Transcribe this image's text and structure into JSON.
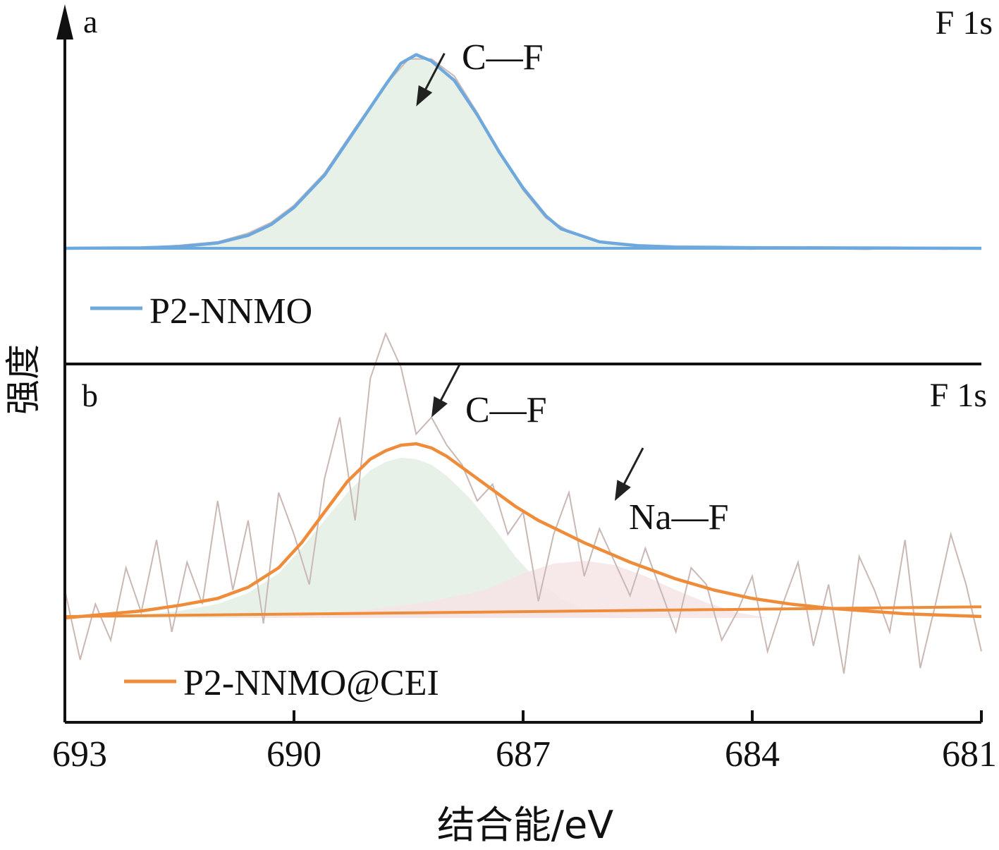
{
  "chart_data": {
    "type": "line",
    "xlabel": "结合能/eV",
    "ylabel": "强度",
    "x_ticks": [
      693,
      690,
      687,
      684,
      681
    ],
    "xlim": [
      693,
      681
    ],
    "colors": {
      "a": "#6fa8dc",
      "b": "#ef8c3a",
      "raw": "#c9b8b4",
      "fill_cf": "#e4efe4",
      "fill_naf": "#f6e4e6",
      "axis": "#111111"
    },
    "panels": [
      {
        "panel_label": "a",
        "core_level": "F 1s",
        "legend": "P2-NNMO",
        "ylim": [
          0,
          1.2
        ],
        "annotations": [
          {
            "text": "C—F",
            "x": 688.4,
            "y": 0.66
          }
        ],
        "series": [
          {
            "name": "P2-NNMO",
            "role": "fit_envelope",
            "x": [
              693,
              692,
              691.5,
              691,
              690.6,
              690.3,
              690,
              689.6,
              689.2,
              688.8,
              688.6,
              688.4,
              688.2,
              687.9,
              687.6,
              687.3,
              687,
              686.7,
              686.5,
              686,
              685.5,
              685,
              684,
              683,
              682,
              681
            ],
            "y": [
              0,
              0.002,
              0.008,
              0.025,
              0.06,
              0.11,
              0.19,
              0.34,
              0.55,
              0.76,
              0.86,
              0.9,
              0.87,
              0.78,
              0.62,
              0.44,
              0.28,
              0.15,
              0.09,
              0.03,
              0.012,
              0.006,
              0.003,
              0.002,
              0.001,
              0
            ]
          },
          {
            "name": "C—F",
            "role": "component",
            "x": [
              692,
              691,
              690.6,
              690.3,
              690,
              689.6,
              689.2,
              688.8,
              688.6,
              688.4,
              688.2,
              687.9,
              687.6,
              687.3,
              687,
              686.7,
              686.5,
              686,
              685
            ],
            "y": [
              0,
              0.02,
              0.055,
              0.105,
              0.185,
              0.33,
              0.54,
              0.75,
              0.85,
              0.89,
              0.86,
              0.77,
              0.61,
              0.43,
              0.27,
              0.14,
              0.08,
              0.02,
              0
            ]
          },
          {
            "role": "raw",
            "x": [
              693,
              692.5,
              692,
              691.5,
              691,
              690.8,
              690.6,
              690.3,
              690,
              689.6,
              689.2,
              688.8,
              688.5,
              688.2,
              687.9,
              687.6,
              687.3,
              687,
              686.7,
              686.4,
              686,
              685.5,
              685,
              684.5,
              684,
              683.5,
              683,
              682.5,
              682,
              681.5,
              681
            ],
            "y": [
              0.003,
              0.005,
              0.003,
              0.014,
              0.03,
              0.05,
              0.07,
              0.12,
              0.2,
              0.35,
              0.56,
              0.76,
              0.88,
              0.88,
              0.8,
              0.63,
              0.44,
              0.27,
              0.14,
              0.08,
              0.03,
              0.012,
              0.006,
              0.0,
              -0.004,
              0.004,
              -0.002,
              -0.005,
              0.003,
              -0.004,
              0.0
            ]
          },
          {
            "role": "baseline",
            "x": [
              693,
              681
            ],
            "y": [
              0,
              0
            ]
          }
        ]
      },
      {
        "panel_label": "b",
        "core_level": "F 1s",
        "legend": "P2-NNMO@CEI",
        "ylim": [
          0,
          1.2
        ],
        "annotations": [
          {
            "text": "C—F",
            "x": 688.2,
            "y": 0.72
          },
          {
            "text": "Na—F",
            "x": 685.8,
            "y": 0.42
          }
        ],
        "series": [
          {
            "name": "P2-NNMO@CEI",
            "role": "fit_envelope",
            "x": [
              693,
              692,
              691.5,
              691,
              690.6,
              690.2,
              689.9,
              689.6,
              689.3,
              689,
              688.8,
              688.6,
              688.4,
              688.2,
              688,
              687.7,
              687.4,
              687.1,
              686.8,
              686.5,
              686.2,
              685.9,
              685.6,
              685.3,
              685,
              684.5,
              684,
              683.5,
              683,
              682,
              681
            ],
            "y": [
              0,
              0.025,
              0.045,
              0.07,
              0.11,
              0.18,
              0.27,
              0.38,
              0.49,
              0.57,
              0.6,
              0.62,
              0.625,
              0.61,
              0.58,
              0.52,
              0.46,
              0.4,
              0.35,
              0.31,
              0.27,
              0.235,
              0.2,
              0.17,
              0.14,
              0.1,
              0.07,
              0.05,
              0.035,
              0.015,
              0.005
            ]
          },
          {
            "name": "C—F",
            "role": "component",
            "x": [
              692.5,
              692,
              691.5,
              691,
              690.6,
              690.2,
              689.9,
              689.6,
              689.3,
              689,
              688.8,
              688.6,
              688.4,
              688.2,
              688,
              687.7,
              687.4,
              687.1,
              686.8,
              686.5,
              686.2,
              685.9,
              685.5
            ],
            "y": [
              0,
              0.01,
              0.025,
              0.05,
              0.09,
              0.16,
              0.25,
              0.35,
              0.45,
              0.53,
              0.56,
              0.575,
              0.57,
              0.55,
              0.51,
              0.43,
              0.33,
              0.22,
              0.13,
              0.07,
              0.03,
              0.01,
              0
            ]
          },
          {
            "name": "Na—F",
            "role": "component",
            "x": [
              691,
              690,
              689,
              688.2,
              687.5,
              687,
              686.6,
              686.2,
              685.8,
              685.4,
              685,
              684.6,
              684.2,
              683.8
            ],
            "y": [
              0,
              0.01,
              0.03,
              0.06,
              0.1,
              0.16,
              0.195,
              0.205,
              0.19,
              0.15,
              0.1,
              0.055,
              0.02,
              0
            ]
          },
          {
            "role": "raw",
            "x": [
              693,
              692.8,
              692.6,
              692.4,
              692.2,
              692,
              691.8,
              691.6,
              691.4,
              691.2,
              691,
              690.8,
              690.6,
              690.4,
              690.2,
              690,
              689.8,
              689.6,
              689.4,
              689.2,
              689,
              688.8,
              688.6,
              688.4,
              688.2,
              688,
              687.8,
              687.6,
              687.4,
              687.2,
              687,
              686.8,
              686.6,
              686.4,
              686.2,
              686,
              685.8,
              685.6,
              685.4,
              685.2,
              685,
              684.8,
              684.6,
              684.4,
              684.2,
              684,
              683.8,
              683.6,
              683.4,
              683.2,
              683,
              682.8,
              682.6,
              682.4,
              682.2,
              682,
              681.8,
              681.6,
              681.4,
              681.2,
              681
            ],
            "y": [
              0.1,
              -0.15,
              0.05,
              -0.08,
              0.18,
              0.02,
              0.28,
              -0.05,
              0.2,
              0.05,
              0.42,
              0.1,
              0.35,
              -0.02,
              0.45,
              0.3,
              0.12,
              0.5,
              0.72,
              0.35,
              0.86,
              1.02,
              0.9,
              0.66,
              0.72,
              0.62,
              0.55,
              0.42,
              0.48,
              0.3,
              0.38,
              0.06,
              0.3,
              0.45,
              0.15,
              0.32,
              0.2,
              0.08,
              0.25,
              0.1,
              -0.05,
              0.18,
              0.12,
              -0.08,
              0.02,
              0.15,
              -0.12,
              0.05,
              0.2,
              -0.1,
              0.12,
              -0.2,
              0.22,
              0.1,
              -0.05,
              0.28,
              -0.18,
              0.05,
              0.3,
              0.12,
              -0.12
            ]
          },
          {
            "role": "baseline",
            "x": [
              693,
              681
            ],
            "y": [
              0.005,
              0.04
            ]
          }
        ]
      }
    ]
  }
}
